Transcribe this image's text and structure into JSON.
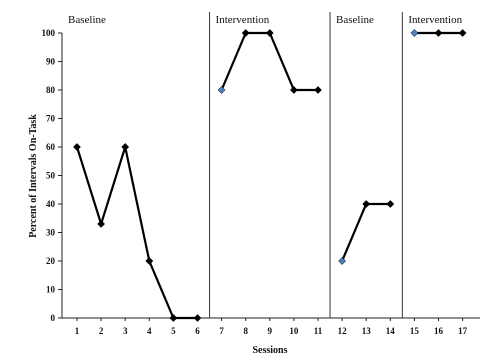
{
  "chart_data": {
    "type": "line",
    "xlabel": "Sessions",
    "ylabel": "Percent of Intervals On-Task",
    "ylim": [
      0,
      100
    ],
    "yticks": [
      0,
      10,
      20,
      30,
      40,
      50,
      60,
      70,
      80,
      90,
      100
    ],
    "xticks": [
      1,
      2,
      3,
      4,
      5,
      6,
      7,
      8,
      9,
      10,
      11,
      12,
      13,
      14,
      15,
      16,
      17
    ],
    "grid": false,
    "phase_change_after_sessions": [
      6.5,
      11.5,
      14.5
    ],
    "phases": [
      {
        "label": "Baseline",
        "x": [
          1,
          2,
          3,
          4,
          5,
          6
        ],
        "values": [
          60,
          33,
          60,
          20,
          0,
          0
        ]
      },
      {
        "label": "Intervention",
        "x": [
          7,
          8,
          9,
          10,
          11
        ],
        "values": [
          80,
          100,
          100,
          80,
          80
        ]
      },
      {
        "label": "Baseline",
        "x": [
          12,
          13,
          14
        ],
        "values": [
          20,
          40,
          40
        ]
      },
      {
        "label": "Intervention",
        "x": [
          15,
          16,
          17
        ],
        "values": [
          100,
          100,
          100
        ]
      }
    ],
    "colors": {
      "line": "#000000",
      "marker": "#000000",
      "first_point_marker": "#4a7fc1"
    }
  }
}
